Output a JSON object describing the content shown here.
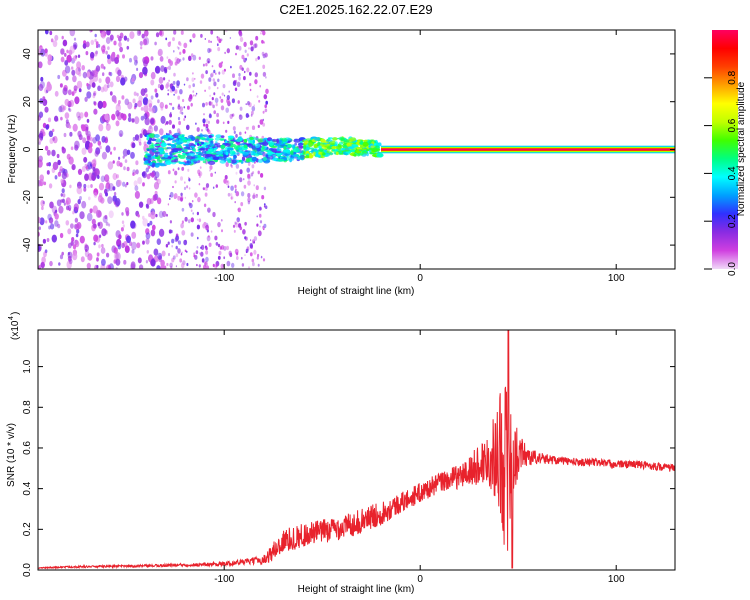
{
  "title": "C2E1.2025.162.22.07.E29",
  "chart_data": [
    {
      "type": "heatmap",
      "xlabel": "Height of straight line (km)",
      "ylabel": "Frequency (Hz)",
      "xlim": [
        -195,
        130
      ],
      "ylim": [
        -50,
        50
      ],
      "xticks": [
        -100,
        0,
        100
      ],
      "yticks": [
        -40,
        -20,
        0,
        20,
        40
      ],
      "colorbar": {
        "label": "Normalized spectral amplitude",
        "range": [
          0,
          1
        ],
        "ticks": [
          0.0,
          0.2,
          0.4,
          0.6,
          0.8
        ],
        "colors": [
          "#f0d8f8",
          "#d040e0",
          "#8a2be2",
          "#3030ff",
          "#00a0ff",
          "#00ffff",
          "#00ff80",
          "#40ff00",
          "#c0ff00",
          "#ffff00",
          "#ffa000",
          "#ff4000",
          "#ff0000",
          "#ff0060"
        ]
      },
      "regions": [
        {
          "description_x_km": [
            -195,
            -78
          ],
          "freq_hz": [
            -50,
            50
          ],
          "amplitude": 0.15,
          "pattern": "scattered speckle"
        },
        {
          "description_x_km": [
            -140,
            -20
          ],
          "freq_hz": [
            -7,
            6
          ],
          "amplitude": 0.35,
          "pattern": "noisy band"
        },
        {
          "description_x_km": [
            -20,
            130
          ],
          "freq_hz": [
            -1.5,
            1.5
          ],
          "amplitude": 0.9,
          "pattern": "narrow line"
        }
      ],
      "grid": false
    },
    {
      "type": "line",
      "xlabel": "Height of straight line (km)",
      "ylabel": "SNR (10 * v/v)",
      "yscale_label": "(x10",
      "yscale_exp": "4",
      "xlim": [
        -195,
        130
      ],
      "ylim": [
        0,
        1.18
      ],
      "xticks": [
        -100,
        0,
        100
      ],
      "yticks": [
        0.0,
        0.2,
        0.4,
        0.6,
        0.8,
        1.0
      ],
      "series": [
        {
          "color": "#e8222c",
          "x": [
            -195,
            -180,
            -160,
            -140,
            -120,
            -100,
            -90,
            -80,
            -75,
            -70,
            -60,
            -50,
            -40,
            -30,
            -20,
            -10,
            0,
            10,
            20,
            25,
            30,
            35,
            38,
            40,
            43,
            45,
            47,
            50,
            55,
            60,
            70,
            80,
            90,
            100,
            110,
            120,
            130
          ],
          "y": [
            0.01,
            0.015,
            0.018,
            0.02,
            0.025,
            0.03,
            0.04,
            0.05,
            0.09,
            0.14,
            0.17,
            0.19,
            0.21,
            0.24,
            0.28,
            0.33,
            0.38,
            0.43,
            0.46,
            0.48,
            0.52,
            0.55,
            0.56,
            0.58,
            0.55,
            0.45,
            0.52,
            0.58,
            0.56,
            0.55,
            0.54,
            0.53,
            0.53,
            0.52,
            0.52,
            0.51,
            0.5
          ],
          "noise": [
            0.003,
            0.004,
            0.005,
            0.006,
            0.008,
            0.01,
            0.015,
            0.02,
            0.05,
            0.06,
            0.06,
            0.06,
            0.06,
            0.06,
            0.06,
            0.05,
            0.05,
            0.05,
            0.06,
            0.08,
            0.1,
            0.14,
            0.2,
            0.3,
            0.45,
            0.4,
            0.25,
            0.1,
            0.05,
            0.03,
            0.02,
            0.02,
            0.02,
            0.02,
            0.02,
            0.02,
            0.02
          ],
          "peak": {
            "x": 45,
            "y": 1.18
          },
          "dip": {
            "x": 47,
            "y": 0.01
          }
        }
      ],
      "grid": false
    }
  ]
}
